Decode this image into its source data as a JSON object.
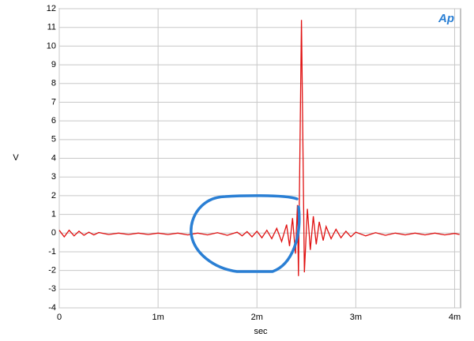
{
  "chart_data": {
    "type": "line",
    "logo": "Ap",
    "y_label": "V",
    "x_label": "sec",
    "xlim": [
      0,
      0.00406
    ],
    "ylim": [
      -4,
      12
    ],
    "xticks": [
      {
        "value": 0,
        "label": "0"
      },
      {
        "value": 0.001,
        "label": "1m"
      },
      {
        "value": 0.002,
        "label": "2m"
      },
      {
        "value": 0.003,
        "label": "3m"
      },
      {
        "value": 0.004,
        "label": "4m"
      }
    ],
    "yticks": [
      -4,
      -3,
      -2,
      -1,
      0,
      1,
      2,
      3,
      4,
      5,
      6,
      7,
      8,
      9,
      10,
      11,
      12
    ],
    "grid": true,
    "x": [
      0,
      5e-05,
      0.0001,
      0.00015,
      0.0002,
      0.00025,
      0.0003,
      0.00035,
      0.0004,
      0.0005,
      0.0006,
      0.0007,
      0.0008,
      0.0009,
      0.001,
      0.0011,
      0.0012,
      0.0013,
      0.0014,
      0.0015,
      0.0016,
      0.0017,
      0.0018,
      0.00185,
      0.0019,
      0.00195,
      0.002,
      0.00205,
      0.0021,
      0.00215,
      0.0022,
      0.00225,
      0.0023,
      0.00233,
      0.00236,
      0.00239,
      0.00241,
      0.00242,
      0.00245,
      0.00248,
      0.00251,
      0.00254,
      0.00257,
      0.0026,
      0.00263,
      0.00267,
      0.0027,
      0.00275,
      0.0028,
      0.00285,
      0.0029,
      0.00295,
      0.003,
      0.0031,
      0.0032,
      0.0033,
      0.0034,
      0.0035,
      0.0036,
      0.0037,
      0.0038,
      0.0039,
      0.004,
      0.00405
    ],
    "series": [
      {
        "color": "#e01010",
        "values": [
          0.15,
          -0.2,
          0.15,
          -0.15,
          0.1,
          -0.12,
          0.05,
          -0.1,
          0.03,
          -0.08,
          0.0,
          -0.08,
          0.0,
          -0.08,
          0.0,
          -0.08,
          0.0,
          -0.1,
          0.0,
          -0.1,
          0.02,
          -0.12,
          0.05,
          -0.15,
          0.08,
          -0.2,
          0.1,
          -0.25,
          0.15,
          -0.3,
          0.25,
          -0.45,
          0.45,
          -0.7,
          0.8,
          -1.1,
          1.5,
          -2.3,
          11.4,
          -2.1,
          1.3,
          -0.9,
          0.9,
          -0.6,
          0.6,
          -0.4,
          0.35,
          -0.3,
          0.2,
          -0.25,
          0.1,
          -0.2,
          0.05,
          -0.15,
          0.02,
          -0.12,
          0.0,
          -0.1,
          0.0,
          -0.1,
          0.0,
          -0.1,
          -0.02,
          -0.08
        ]
      }
    ]
  }
}
